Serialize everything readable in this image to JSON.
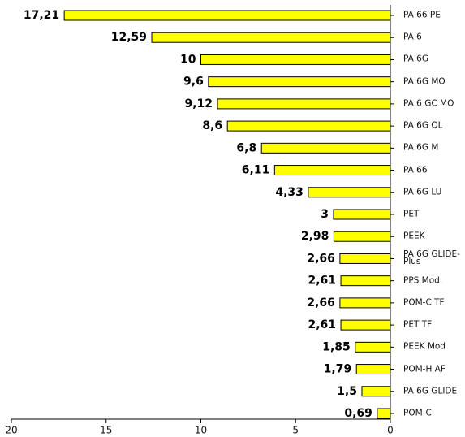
{
  "chart_data": {
    "type": "bar",
    "orientation": "horizontal",
    "categories": [
      "PA 66 PE",
      "PA 6",
      "PA 6G",
      "PA 6G MO",
      "PA 6 GC MO",
      "PA 6G OL",
      "PA 6G M",
      "PA 66",
      "PA 6G LU",
      "PET",
      "PEEK",
      "PA 6G GLIDE-Plus",
      "PPS Mod.",
      "POM-C TF",
      "PET TF",
      "PEEK Mod",
      "POM-H AF",
      "PA 6G GLIDE",
      "POM-C"
    ],
    "values": [
      17.21,
      12.59,
      10,
      9.6,
      9.12,
      8.6,
      6.8,
      6.11,
      4.33,
      3,
      2.98,
      2.66,
      2.61,
      2.66,
      2.61,
      1.85,
      1.79,
      1.5,
      0.69
    ],
    "value_labels": [
      "17,21",
      "12,59",
      "10",
      "9,6",
      "9,12",
      "8,6",
      "6,8",
      "6,11",
      "4,33",
      "3",
      "2,98",
      "2,66",
      "2,61",
      "2,66",
      "2,61",
      "1,85",
      "1,79",
      "1,5",
      "0,69"
    ],
    "color": "#ffff00",
    "xlim": [
      20,
      0
    ],
    "xticks": [
      20,
      15,
      10,
      5,
      0
    ]
  }
}
